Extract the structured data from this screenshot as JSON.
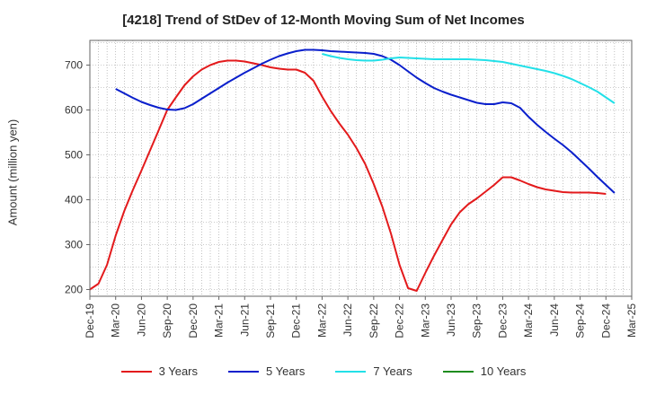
{
  "chart_data": {
    "type": "line",
    "title": "[4218]  Trend of StDev of 12-Month Moving Sum of Net Incomes",
    "ylabel": "Amount (million yen)",
    "xlabel": "",
    "ylim": [
      185,
      755
    ],
    "yticks": [
      200,
      300,
      400,
      500,
      600,
      700
    ],
    "x_ticks": [
      "Dec-19",
      "Mar-20",
      "Jun-20",
      "Sep-20",
      "Dec-20",
      "Mar-21",
      "Jun-21",
      "Sep-21",
      "Dec-21",
      "Mar-22",
      "Jun-22",
      "Sep-22",
      "Dec-22",
      "Mar-23",
      "Jun-23",
      "Sep-23",
      "Dec-23",
      "Mar-24",
      "Jun-24",
      "Sep-24",
      "Dec-24",
      "Mar-25"
    ],
    "grid": true,
    "legend_position": "bottom",
    "series": [
      {
        "name": "3 Years",
        "color": "#e31a1c",
        "points": [
          [
            "Dec-19",
            200
          ],
          [
            "Jan-20",
            213
          ],
          [
            "Feb-20",
            255
          ],
          [
            "Mar-20",
            320
          ],
          [
            "Apr-20",
            375
          ],
          [
            "May-20",
            422
          ],
          [
            "Jun-20",
            465
          ],
          [
            "Jul-20",
            510
          ],
          [
            "Aug-20",
            555
          ],
          [
            "Sep-20",
            600
          ],
          [
            "Oct-20",
            628
          ],
          [
            "Nov-20",
            655
          ],
          [
            "Dec-20",
            675
          ],
          [
            "Jan-21",
            690
          ],
          [
            "Feb-21",
            700
          ],
          [
            "Mar-21",
            707
          ],
          [
            "Apr-21",
            710
          ],
          [
            "May-21",
            710
          ],
          [
            "Jun-21",
            708
          ],
          [
            "Jul-21",
            704
          ],
          [
            "Aug-21",
            700
          ],
          [
            "Sep-21",
            695
          ],
          [
            "Oct-21",
            692
          ],
          [
            "Nov-21",
            690
          ],
          [
            "Dec-21",
            690
          ],
          [
            "Jan-22",
            683
          ],
          [
            "Feb-22",
            665
          ],
          [
            "Mar-22",
            630
          ],
          [
            "Apr-22",
            598
          ],
          [
            "May-22",
            570
          ],
          [
            "Jun-22",
            545
          ],
          [
            "Jul-22",
            515
          ],
          [
            "Aug-22",
            480
          ],
          [
            "Sep-22",
            435
          ],
          [
            "Oct-22",
            385
          ],
          [
            "Nov-22",
            325
          ],
          [
            "Dec-22",
            255
          ],
          [
            "Jan-23",
            203
          ],
          [
            "Feb-23",
            197
          ],
          [
            "Mar-23",
            237
          ],
          [
            "Apr-23",
            275
          ],
          [
            "May-23",
            310
          ],
          [
            "Jun-23",
            345
          ],
          [
            "Jul-23",
            372
          ],
          [
            "Aug-23",
            390
          ],
          [
            "Sep-23",
            403
          ],
          [
            "Oct-23",
            418
          ],
          [
            "Nov-23",
            433
          ],
          [
            "Dec-23",
            450
          ],
          [
            "Jan-24",
            450
          ],
          [
            "Feb-24",
            443
          ],
          [
            "Mar-24",
            435
          ],
          [
            "Apr-24",
            428
          ],
          [
            "May-24",
            423
          ],
          [
            "Jun-24",
            420
          ],
          [
            "Jul-24",
            417
          ],
          [
            "Aug-24",
            416
          ],
          [
            "Sep-24",
            416
          ],
          [
            "Oct-24",
            416
          ],
          [
            "Nov-24",
            415
          ],
          [
            "Dec-24",
            413
          ]
        ]
      },
      {
        "name": "5 Years",
        "color": "#0a1fcc",
        "points": [
          [
            "Mar-20",
            647
          ],
          [
            "Apr-20",
            637
          ],
          [
            "May-20",
            627
          ],
          [
            "Jun-20",
            618
          ],
          [
            "Jul-20",
            611
          ],
          [
            "Aug-20",
            605
          ],
          [
            "Sep-20",
            601
          ],
          [
            "Oct-20",
            600
          ],
          [
            "Nov-20",
            604
          ],
          [
            "Dec-20",
            613
          ],
          [
            "Jan-21",
            625
          ],
          [
            "Feb-21",
            637
          ],
          [
            "Mar-21",
            649
          ],
          [
            "Apr-21",
            661
          ],
          [
            "May-21",
            672
          ],
          [
            "Jun-21",
            683
          ],
          [
            "Jul-21",
            693
          ],
          [
            "Aug-21",
            703
          ],
          [
            "Sep-21",
            712
          ],
          [
            "Oct-21",
            720
          ],
          [
            "Nov-21",
            726
          ],
          [
            "Dec-21",
            731
          ],
          [
            "Jan-22",
            734
          ],
          [
            "Feb-22",
            734
          ],
          [
            "Mar-22",
            733
          ],
          [
            "Apr-22",
            731
          ],
          [
            "May-22",
            730
          ],
          [
            "Jun-22",
            729
          ],
          [
            "Jul-22",
            728
          ],
          [
            "Aug-22",
            727
          ],
          [
            "Sep-22",
            725
          ],
          [
            "Oct-22",
            720
          ],
          [
            "Nov-22",
            712
          ],
          [
            "Dec-22",
            700
          ],
          [
            "Jan-23",
            686
          ],
          [
            "Feb-23",
            672
          ],
          [
            "Mar-23",
            660
          ],
          [
            "Apr-23",
            649
          ],
          [
            "May-23",
            641
          ],
          [
            "Jun-23",
            634
          ],
          [
            "Jul-23",
            628
          ],
          [
            "Aug-23",
            622
          ],
          [
            "Sep-23",
            616
          ],
          [
            "Oct-23",
            613
          ],
          [
            "Nov-23",
            613
          ],
          [
            "Dec-23",
            617
          ],
          [
            "Jan-24",
            615
          ],
          [
            "Feb-24",
            605
          ],
          [
            "Mar-24",
            585
          ],
          [
            "Apr-24",
            567
          ],
          [
            "May-24",
            551
          ],
          [
            "Jun-24",
            536
          ],
          [
            "Jul-24",
            522
          ],
          [
            "Aug-24",
            506
          ],
          [
            "Sep-24",
            488
          ],
          [
            "Oct-24",
            470
          ],
          [
            "Nov-24",
            451
          ],
          [
            "Dec-24",
            433
          ],
          [
            "Jan-25",
            415
          ]
        ]
      },
      {
        "name": "7 Years",
        "color": "#22e0e8",
        "points": [
          [
            "Mar-22",
            725
          ],
          [
            "Apr-22",
            720
          ],
          [
            "May-22",
            716
          ],
          [
            "Jun-22",
            713
          ],
          [
            "Jul-22",
            711
          ],
          [
            "Aug-22",
            710
          ],
          [
            "Sep-22",
            710
          ],
          [
            "Oct-22",
            712
          ],
          [
            "Nov-22",
            715
          ],
          [
            "Dec-22",
            717
          ],
          [
            "Jan-23",
            716
          ],
          [
            "Feb-23",
            715
          ],
          [
            "Mar-23",
            714
          ],
          [
            "Apr-23",
            713
          ],
          [
            "May-23",
            713
          ],
          [
            "Jun-23",
            713
          ],
          [
            "Jul-23",
            713
          ],
          [
            "Aug-23",
            713
          ],
          [
            "Sep-23",
            712
          ],
          [
            "Oct-23",
            711
          ],
          [
            "Nov-23",
            709
          ],
          [
            "Dec-23",
            707
          ],
          [
            "Jan-24",
            703
          ],
          [
            "Feb-24",
            699
          ],
          [
            "Mar-24",
            695
          ],
          [
            "Apr-24",
            691
          ],
          [
            "May-24",
            687
          ],
          [
            "Jun-24",
            682
          ],
          [
            "Jul-24",
            676
          ],
          [
            "Aug-24",
            669
          ],
          [
            "Sep-24",
            660
          ],
          [
            "Oct-24",
            651
          ],
          [
            "Nov-24",
            641
          ],
          [
            "Dec-24",
            628
          ],
          [
            "Jan-25",
            615
          ]
        ]
      },
      {
        "name": "10 Years",
        "color": "#1e8c1e",
        "points": []
      }
    ]
  }
}
